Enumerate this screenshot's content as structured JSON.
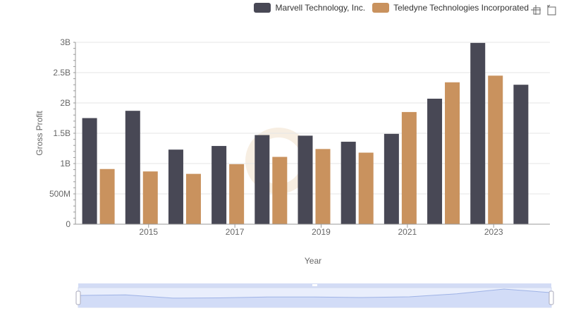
{
  "legend": {
    "marvell": "Marvell Technology, Inc.",
    "teledyne": "Teledyne Technologies Incorporated"
  },
  "toolbar": {
    "zoom_icon": "crosshair-zoom-icon",
    "reset_icon": "zoom-reset-icon"
  },
  "chart_data": {
    "type": "bar",
    "xlabel": "Year",
    "ylabel": "Gross Profit",
    "ylim": [
      0,
      3000000000
    ],
    "yticks": [
      {
        "value": 0,
        "label": "0"
      },
      {
        "value": 500000000,
        "label": "500M"
      },
      {
        "value": 1000000000,
        "label": "1B"
      },
      {
        "value": 1500000000,
        "label": "1.5B"
      },
      {
        "value": 2000000000,
        "label": "2B"
      },
      {
        "value": 2500000000,
        "label": "2.5B"
      },
      {
        "value": 3000000000,
        "label": "3B"
      }
    ],
    "categories": [
      "2014",
      "2015",
      "2016",
      "2017",
      "2018",
      "2019",
      "2020",
      "2021",
      "2022",
      "2023",
      "2024"
    ],
    "xtick_labels": [
      "2015",
      "2017",
      "2019",
      "2021",
      "2023"
    ],
    "grid": true,
    "legend_position": "top-right",
    "series": [
      {
        "name": "Marvell Technology, Inc.",
        "color": "#484855",
        "values": [
          1750000000,
          1870000000,
          1230000000,
          1290000000,
          1470000000,
          1460000000,
          1360000000,
          1490000000,
          2070000000,
          2990000000,
          2300000000
        ]
      },
      {
        "name": "Teledyne Technologies Incorporated",
        "color": "#C9925E",
        "values": [
          910000000,
          870000000,
          830000000,
          990000000,
          1110000000,
          1240000000,
          1180000000,
          1850000000,
          2340000000,
          2450000000,
          null
        ]
      }
    ]
  }
}
